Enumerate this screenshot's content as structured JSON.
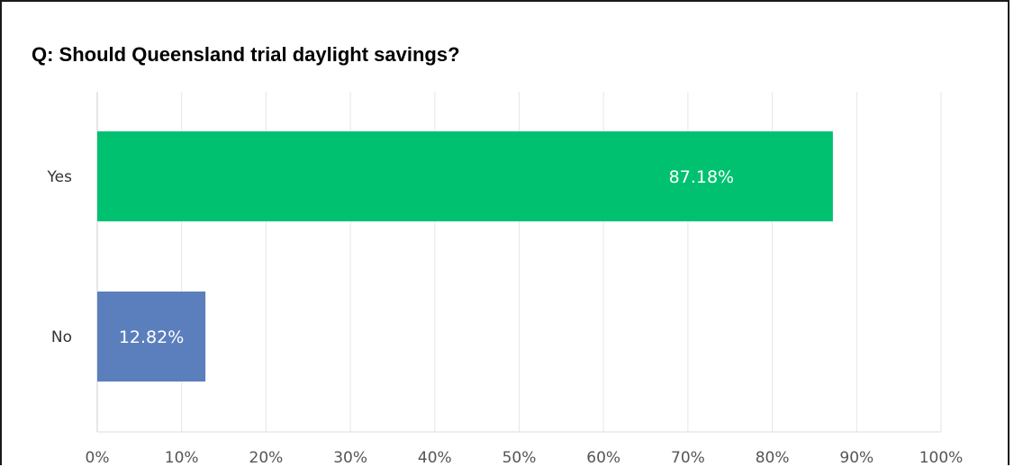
{
  "chart_data": {
    "type": "bar",
    "orientation": "horizontal",
    "title": "Q: Should Queensland trial daylight savings?",
    "categories": [
      "Yes",
      "No"
    ],
    "values": [
      87.18,
      12.82
    ],
    "data_labels": [
      "87.18%",
      "12.82%"
    ],
    "colors": [
      "#00c170",
      "#5b7fbd"
    ],
    "xlim": [
      0,
      100
    ],
    "x_ticks": [
      0,
      10,
      20,
      30,
      40,
      50,
      60,
      70,
      80,
      90,
      100
    ],
    "x_tick_labels": [
      "0%",
      "10%",
      "20%",
      "30%",
      "40%",
      "50%",
      "60%",
      "70%",
      "80%",
      "90%",
      "100%"
    ],
    "xlabel": "",
    "ylabel": "",
    "grid": true,
    "legend": "none"
  }
}
